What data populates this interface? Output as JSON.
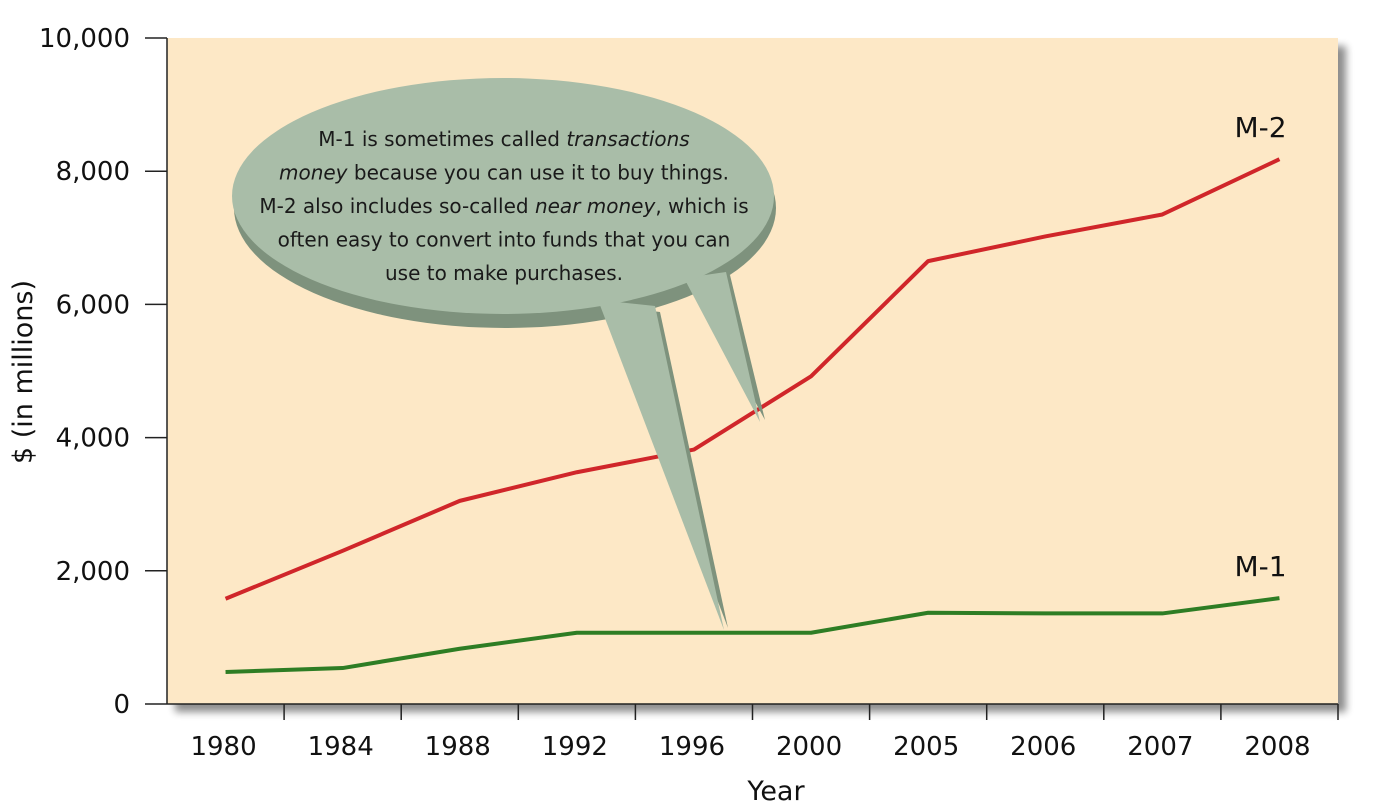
{
  "chart_data": {
    "type": "line",
    "categories": [
      "1980",
      "1984",
      "1988",
      "1992",
      "1996",
      "2000",
      "2005",
      "2006",
      "2007",
      "2008"
    ],
    "series": [
      {
        "name": "M-2",
        "color": "#d0262a",
        "values": [
          1580,
          2300,
          3050,
          3480,
          3820,
          4920,
          6650,
          7020,
          7350,
          8180
        ]
      },
      {
        "name": "M-1",
        "color": "#2e7d24",
        "values": [
          480,
          540,
          830,
          1070,
          1070,
          1070,
          1370,
          1360,
          1360,
          1590
        ]
      }
    ],
    "xlabel": "Year",
    "ylabel": "$ (in millions)",
    "ylim": [
      0,
      10000
    ],
    "yticks": [
      "0",
      "2,000",
      "4,000",
      "6,000",
      "8,000",
      "10,000"
    ],
    "ytick_values": [
      0,
      2000,
      4000,
      6000,
      8000,
      10000
    ],
    "plot_background": "#fde8c6",
    "callout": {
      "fill": "#a9bda8",
      "lines": [
        [
          {
            "t": "M-1 is sometimes called "
          },
          {
            "t": "transactions",
            "em": true
          }
        ],
        [
          {
            "t": "money",
            "em": true
          },
          {
            "t": " because you can use it to buy things."
          }
        ],
        [
          {
            "t": "M-2 also includes so-called "
          },
          {
            "t": "near money",
            "em": true
          },
          {
            "t": ", which is"
          }
        ],
        [
          {
            "t": "often easy to convert into funds that you can"
          }
        ],
        [
          {
            "t": "use to make purchases."
          }
        ]
      ]
    }
  }
}
